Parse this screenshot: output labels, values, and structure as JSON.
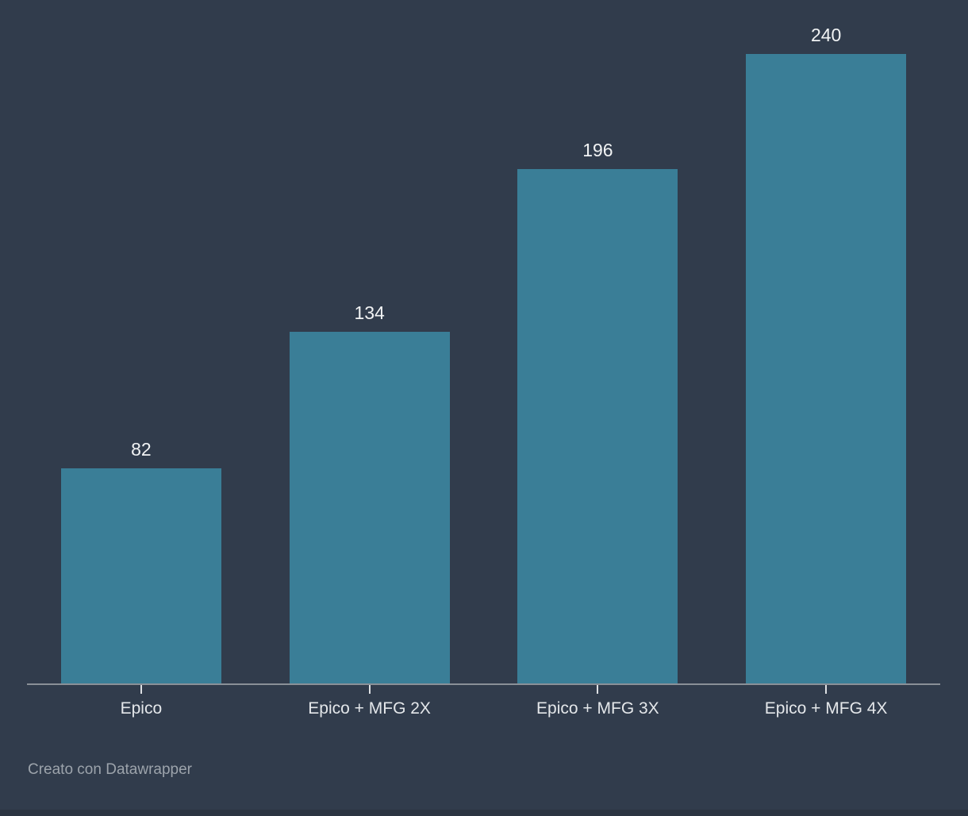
{
  "colors": {
    "background": "#313C4C",
    "bar": "#3A7E97",
    "axis_line": "#8A9097",
    "tick": "#DDE0E3",
    "value_label": "#F1F3F4",
    "category_label": "#E4E7EA",
    "footer_text": "#9CA3AB",
    "bottom_strip": "#2B3441"
  },
  "chart_data": {
    "type": "bar",
    "categories": [
      "Epico",
      "Epico + MFG 2X",
      "Epico + MFG 3X",
      "Epico + MFG 4X"
    ],
    "values": [
      82,
      134,
      196,
      240
    ],
    "value_labels": [
      "82",
      "134",
      "196",
      "240"
    ],
    "title": "",
    "xlabel": "",
    "ylabel": "",
    "ylim": [
      0,
      240
    ],
    "grid": false,
    "legend": false,
    "value_labels_position": "above-bar",
    "orientation": "vertical"
  },
  "footer": {
    "attribution": "Creato con Datawrapper"
  }
}
